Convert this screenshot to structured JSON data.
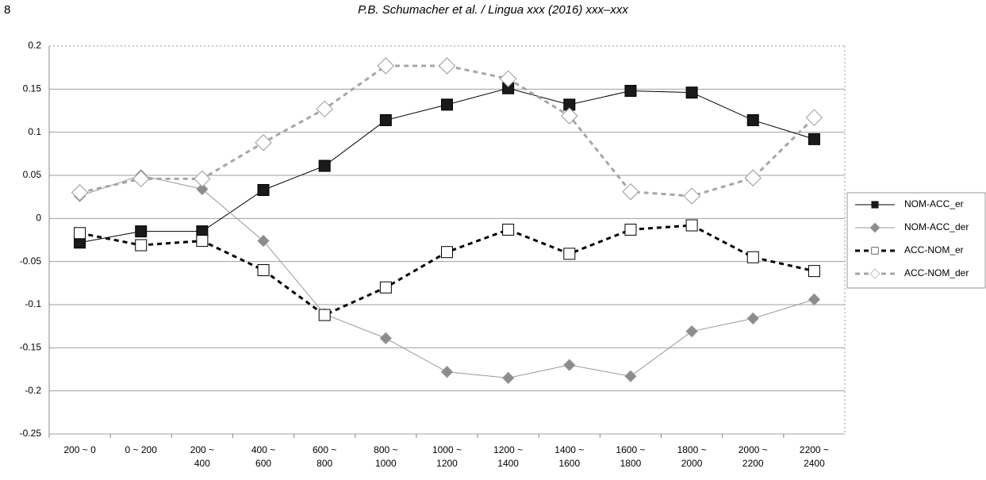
{
  "header": {
    "page": "8",
    "running_title": "P.B. Schumacher et al. / Lingua xxx (2016) xxx–xxx"
  },
  "chart_data": {
    "type": "line",
    "categories": [
      "200 ~ 0",
      "0 ~ 200",
      "200 ~\n400",
      "400 ~\n600",
      "600 ~\n800",
      "800 ~\n1000",
      "1000 ~\n1200",
      "1200 ~\n1400",
      "1400 ~\n1600",
      "1600 ~\n1800",
      "1800 ~\n2000",
      "2000 ~\n2200",
      "2200 ~\n2400"
    ],
    "series": [
      {
        "name": "NOM-ACC_er",
        "color": "#000000",
        "marker": "square",
        "marker_fill": "#1a1a1a",
        "dashed": false,
        "values": [
          -0.028,
          -0.015,
          -0.015,
          0.033,
          0.061,
          0.114,
          0.132,
          0.151,
          0.132,
          0.148,
          0.146,
          0.114,
          0.092
        ]
      },
      {
        "name": "NOM-ACC_der",
        "color": "#999999",
        "marker": "diamond",
        "marker_fill": "#8c8c8c",
        "dashed": false,
        "values": [
          0.026,
          0.05,
          0.034,
          -0.026,
          -0.111,
          -0.139,
          -0.178,
          -0.185,
          -0.17,
          -0.183,
          -0.131,
          -0.116,
          -0.094
        ]
      },
      {
        "name": "ACC-NOM_er",
        "color": "#000000",
        "marker": "square",
        "marker_fill": "#ffffff",
        "dashed": true,
        "values": [
          -0.017,
          -0.031,
          -0.026,
          -0.06,
          -0.112,
          -0.08,
          -0.039,
          -0.013,
          -0.041,
          -0.013,
          -0.008,
          -0.045,
          -0.061
        ]
      },
      {
        "name": "ACC-NOM_der",
        "color": "#a6a6a6",
        "marker": "diamond",
        "marker_fill": "#ffffff",
        "dashed": true,
        "values": [
          0.03,
          0.046,
          0.046,
          0.088,
          0.127,
          0.177,
          0.177,
          0.162,
          0.119,
          0.031,
          0.026,
          0.047,
          0.117
        ]
      }
    ],
    "ylim": [
      -0.25,
      0.2
    ],
    "yticks": [
      0.2,
      0.15,
      0.1,
      0.05,
      0,
      -0.05,
      -0.1,
      -0.15,
      -0.2,
      -0.25
    ],
    "grid": true,
    "legend": "right"
  }
}
